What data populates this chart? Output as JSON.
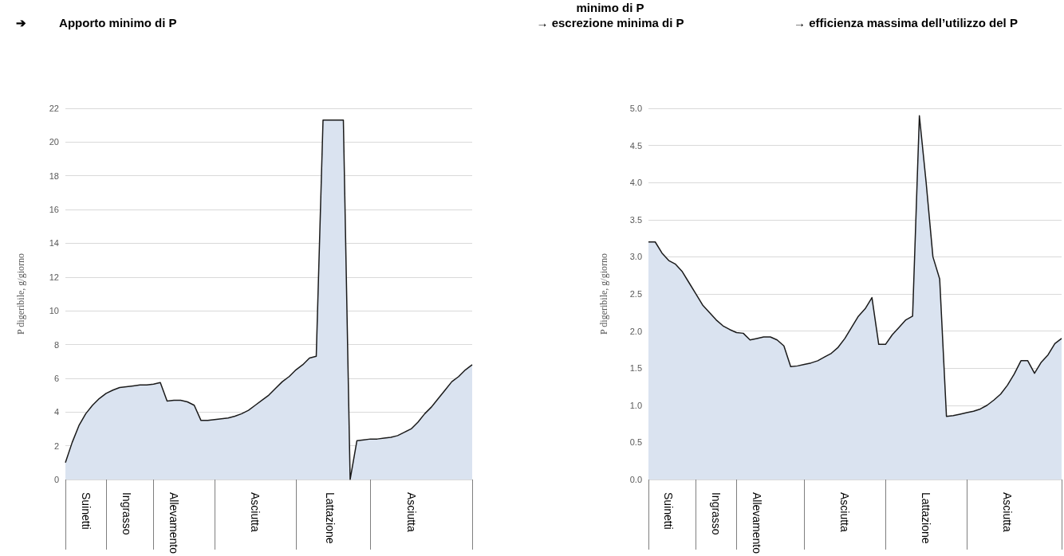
{
  "chart_data": [
    {
      "type": "area",
      "title": "➔          Apporto minimo di P",
      "ylabel": "P digeribile, g/giorno",
      "color": "#dae3f0",
      "marker": "none",
      "grid": "y",
      "ylim": [
        0,
        22
      ],
      "yticks": [
        0,
        2,
        4,
        6,
        8,
        10,
        12,
        14,
        16,
        18,
        20,
        22
      ],
      "categories": [
        null,
        null,
        null,
        "Suinetti",
        null,
        null,
        null,
        null,
        null,
        "Ingrasso",
        null,
        null,
        null,
        null,
        null,
        null,
        "Allevamento",
        null,
        null,
        null,
        null,
        null,
        null,
        null,
        null,
        null,
        null,
        null,
        "Asciutta",
        null,
        null,
        null,
        null,
        null,
        null,
        null,
        null,
        null,
        null,
        "Lattazione",
        null,
        null,
        null,
        null,
        null,
        null,
        null,
        null,
        null,
        null,
        null,
        "Asciutta",
        null,
        null,
        null,
        null,
        null,
        null,
        null,
        null,
        null
      ],
      "values": [
        1.0,
        2.2,
        3.2,
        3.9,
        4.4,
        4.8,
        5.1,
        5.3,
        5.45,
        5.5,
        5.55,
        5.6,
        5.6,
        5.65,
        5.75,
        4.65,
        4.7,
        4.7,
        4.6,
        4.4,
        3.5,
        3.5,
        3.55,
        3.6,
        3.65,
        3.75,
        3.9,
        4.1,
        4.4,
        4.7,
        5.0,
        5.4,
        5.8,
        6.1,
        6.5,
        6.8,
        7.2,
        7.3,
        21.3,
        21.3,
        21.3,
        21.3,
        0,
        2.3,
        2.35,
        2.4,
        2.4,
        2.45,
        2.5,
        2.6,
        2.8,
        3.0,
        3.4,
        3.9,
        4.3,
        4.8,
        5.3,
        5.8,
        6.1,
        6.5,
        6.8
      ]
    },
    {
      "type": "area",
      "title": "→ efficienza massima dell’utilizzo del P",
      "ylabel": "P digeribile, g/giorno",
      "color": "#dae3f0",
      "marker": "none",
      "grid": "y",
      "ylim": [
        0,
        5
      ],
      "yticks": [
        {
          "value": 0,
          "label": "0.0"
        },
        {
          "value": 0.5,
          "label": "0.5"
        },
        {
          "value": 1,
          "label": "1.0"
        },
        {
          "value": 1.5,
          "label": "1.5"
        },
        {
          "value": 2,
          "label": "2.0"
        },
        {
          "value": 2.5,
          "label": "2.5"
        },
        {
          "value": 3,
          "label": "3.0"
        },
        {
          "value": 3.5,
          "label": "3.5"
        },
        {
          "value": 4,
          "label": "4.0"
        },
        {
          "value": 4.5,
          "label": "4.5"
        },
        {
          "value": 5,
          "label": "5.0"
        }
      ],
      "categories": [
        null,
        null,
        null,
        "Suinetti",
        null,
        null,
        null,
        null,
        null,
        null,
        "Ingrasso",
        null,
        null,
        null,
        null,
        null,
        "Allevamento",
        null,
        null,
        null,
        null,
        null,
        null,
        null,
        null,
        null,
        null,
        null,
        null,
        "Asciutta",
        null,
        null,
        null,
        null,
        null,
        null,
        null,
        null,
        null,
        null,
        null,
        "Lattazione",
        null,
        null,
        null,
        null,
        null,
        null,
        null,
        null,
        null,
        null,
        null,
        "Asciutta",
        null,
        null,
        null,
        null,
        null,
        null,
        null,
        null
      ],
      "values": [
        3.2,
        3.2,
        3.05,
        2.95,
        2.9,
        2.8,
        2.65,
        2.5,
        2.35,
        2.25,
        2.15,
        2.07,
        2.02,
        1.98,
        1.97,
        1.88,
        1.9,
        1.92,
        1.92,
        1.88,
        1.8,
        1.52,
        1.53,
        1.55,
        1.57,
        1.6,
        1.65,
        1.7,
        1.78,
        1.9,
        2.05,
        2.2,
        2.3,
        2.45,
        1.82,
        1.82,
        1.95,
        2.05,
        2.15,
        2.2,
        4.9,
        4.0,
        3.0,
        2.7,
        0.85,
        0.86,
        0.88,
        0.9,
        0.92,
        0.95,
        1.0,
        1.07,
        1.15,
        1.27,
        1.42,
        1.6,
        1.6,
        1.43,
        1.58,
        1.68,
        1.83,
        1.9
      ]
    },
    {
      "type": "other",
      "annotations": [
        "minimo di P",
        "→ escrezione minima di P"
      ]
    }
  ]
}
